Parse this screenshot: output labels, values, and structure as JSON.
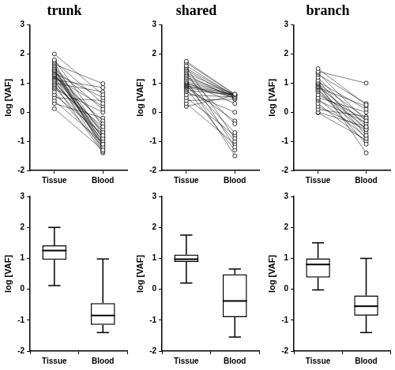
{
  "chart_data": [
    {
      "type": "paired",
      "title": "trunk",
      "y_label": "log [VAF]",
      "categories": [
        "Tissue",
        "Blood"
      ],
      "color": "#000000",
      "marker": "circle",
      "grid": false,
      "ylim": [
        -2,
        3
      ],
      "yticks": [
        -2,
        -1,
        0,
        1,
        2,
        3
      ],
      "series": [
        {
          "values": [
            2.0,
            0.6
          ]
        },
        {
          "values": [
            1.8,
            -0.5
          ]
        },
        {
          "values": [
            1.75,
            0.3
          ]
        },
        {
          "values": [
            1.7,
            -1.1
          ]
        },
        {
          "values": [
            1.65,
            0.98
          ]
        },
        {
          "values": [
            1.6,
            -0.8
          ]
        },
        {
          "values": [
            1.55,
            -1.3
          ]
        },
        {
          "values": [
            1.5,
            0.1
          ]
        },
        {
          "values": [
            1.45,
            -0.9
          ]
        },
        {
          "values": [
            1.42,
            -0.4
          ]
        },
        {
          "values": [
            1.4,
            -1.2
          ]
        },
        {
          "values": [
            1.35,
            0.5
          ]
        },
        {
          "values": [
            1.3,
            -0.7
          ]
        },
        {
          "values": [
            1.28,
            -1.0
          ]
        },
        {
          "values": [
            1.25,
            -0.3
          ]
        },
        {
          "values": [
            1.22,
            -1.35
          ]
        },
        {
          "values": [
            1.2,
            0.2
          ]
        },
        {
          "values": [
            1.15,
            -0.6
          ]
        },
        {
          "values": [
            1.1,
            -1.1
          ]
        },
        {
          "values": [
            1.05,
            -0.85
          ]
        },
        {
          "values": [
            1.0,
            0.7
          ]
        },
        {
          "values": [
            0.95,
            -1.4
          ]
        },
        {
          "values": [
            0.9,
            -0.5
          ]
        },
        {
          "values": [
            0.85,
            -0.95
          ]
        },
        {
          "values": [
            0.8,
            0.0
          ]
        },
        {
          "values": [
            0.7,
            -1.2
          ]
        },
        {
          "values": [
            0.6,
            -0.75
          ]
        },
        {
          "values": [
            0.5,
            0.4
          ]
        },
        {
          "values": [
            0.4,
            -1.05
          ]
        },
        {
          "values": [
            0.3,
            -0.2
          ]
        },
        {
          "values": [
            0.12,
            -1.3
          ]
        },
        {
          "values": [
            1.3,
            -0.9
          ]
        },
        {
          "values": [
            1.45,
            -1.15
          ]
        },
        {
          "values": [
            1.12,
            0.85
          ]
        },
        {
          "values": [
            0.98,
            -0.65
          ]
        }
      ]
    },
    {
      "type": "paired",
      "title": "shared",
      "y_label": "log [VAF]",
      "categories": [
        "Tissue",
        "Blood"
      ],
      "color": "#000000",
      "marker": "circle",
      "grid": false,
      "ylim": [
        -2,
        3
      ],
      "yticks": [
        -2,
        -1,
        0,
        1,
        2,
        3
      ],
      "series": [
        {
          "values": [
            1.75,
            0.62
          ]
        },
        {
          "values": [
            1.7,
            0.6
          ]
        },
        {
          "values": [
            1.6,
            0.55
          ]
        },
        {
          "values": [
            1.55,
            -0.9
          ]
        },
        {
          "values": [
            1.5,
            0.58
          ]
        },
        {
          "values": [
            1.45,
            0.5
          ]
        },
        {
          "values": [
            1.4,
            -1.2
          ]
        },
        {
          "values": [
            1.35,
            0.6
          ]
        },
        {
          "values": [
            1.3,
            0.45
          ]
        },
        {
          "values": [
            1.25,
            -0.4
          ]
        },
        {
          "values": [
            1.2,
            0.62
          ]
        },
        {
          "values": [
            1.15,
            0.55
          ]
        },
        {
          "values": [
            1.1,
            -1.5
          ]
        },
        {
          "values": [
            1.05,
            0.6
          ]
        },
        {
          "values": [
            1.02,
            0.3
          ]
        },
        {
          "values": [
            1.0,
            -0.7
          ]
        },
        {
          "values": [
            0.98,
            0.58
          ]
        },
        {
          "values": [
            0.95,
            -1.0
          ]
        },
        {
          "values": [
            0.92,
            0.5
          ]
        },
        {
          "values": [
            0.9,
            0.6
          ]
        },
        {
          "values": [
            0.88,
            -0.3
          ]
        },
        {
          "values": [
            0.85,
            0.55
          ]
        },
        {
          "values": [
            0.8,
            -1.3
          ]
        },
        {
          "values": [
            0.75,
            0.6
          ]
        },
        {
          "values": [
            0.7,
            0.0
          ]
        },
        {
          "values": [
            0.6,
            0.52
          ]
        },
        {
          "values": [
            0.5,
            -0.8
          ]
        },
        {
          "values": [
            0.4,
            0.45
          ]
        },
        {
          "values": [
            0.3,
            -1.1
          ]
        },
        {
          "values": [
            0.2,
            0.58
          ]
        }
      ]
    },
    {
      "type": "paired",
      "title": "branch",
      "y_label": "log [VAF]",
      "categories": [
        "Tissue",
        "Blood"
      ],
      "color": "#000000",
      "marker": "circle",
      "grid": false,
      "ylim": [
        -2,
        3
      ],
      "yticks": [
        -2,
        -1,
        0,
        1,
        2,
        3
      ],
      "series": [
        {
          "values": [
            1.5,
            0.25
          ]
        },
        {
          "values": [
            1.4,
            1.0
          ]
        },
        {
          "values": [
            1.35,
            -0.3
          ]
        },
        {
          "values": [
            1.3,
            0.3
          ]
        },
        {
          "values": [
            1.2,
            -0.5
          ]
        },
        {
          "values": [
            1.1,
            -0.8
          ]
        },
        {
          "values": [
            1.05,
            0.1
          ]
        },
        {
          "values": [
            1.0,
            -1.4
          ]
        },
        {
          "values": [
            0.98,
            -0.2
          ]
        },
        {
          "values": [
            0.95,
            -0.6
          ]
        },
        {
          "values": [
            0.9,
            -0.9
          ]
        },
        {
          "values": [
            0.88,
            -0.4
          ]
        },
        {
          "values": [
            0.85,
            0.2
          ]
        },
        {
          "values": [
            0.8,
            -1.1
          ]
        },
        {
          "values": [
            0.75,
            -0.55
          ]
        },
        {
          "values": [
            0.7,
            -0.7
          ]
        },
        {
          "values": [
            0.6,
            -0.25
          ]
        },
        {
          "values": [
            0.5,
            0.0
          ]
        },
        {
          "values": [
            0.45,
            -0.85
          ]
        },
        {
          "values": [
            0.4,
            -0.35
          ]
        },
        {
          "values": [
            0.3,
            -1.0
          ]
        },
        {
          "values": [
            0.2,
            -0.6
          ]
        },
        {
          "values": [
            0.1,
            -0.15
          ]
        },
        {
          "values": [
            0.0,
            -0.5
          ]
        },
        {
          "values": [
            -0.02,
            -0.95
          ]
        }
      ]
    },
    {
      "type": "box",
      "y_label": "log [VAF]",
      "categories": [
        "Tissue",
        "Blood"
      ],
      "color": "#000000",
      "grid": false,
      "ylim": [
        -2,
        3
      ],
      "yticks": [
        -2,
        -1,
        0,
        1,
        2,
        3
      ],
      "boxes": [
        {
          "min": 0.12,
          "q1": 0.95,
          "median": 1.25,
          "q3": 1.42,
          "max": 2.0
        },
        {
          "min": -1.4,
          "q1": -1.15,
          "median": -0.85,
          "q3": -0.45,
          "max": 0.98
        }
      ]
    },
    {
      "type": "box",
      "y_label": "log [VAF]",
      "categories": [
        "Tissue",
        "Blood"
      ],
      "color": "#000000",
      "grid": false,
      "ylim": [
        -2,
        3
      ],
      "yticks": [
        -2,
        -1,
        0,
        1,
        2,
        3
      ],
      "boxes": [
        {
          "min": 0.2,
          "q1": 0.88,
          "median": 0.97,
          "q3": 1.12,
          "max": 1.75
        },
        {
          "min": -1.55,
          "q1": -0.9,
          "median": -0.38,
          "q3": 0.48,
          "max": 0.65
        }
      ]
    },
    {
      "type": "box",
      "y_label": "log [VAF]",
      "categories": [
        "Tissue",
        "Blood"
      ],
      "color": "#000000",
      "grid": false,
      "ylim": [
        -2,
        3
      ],
      "yticks": [
        -2,
        -1,
        0,
        1,
        2,
        3
      ],
      "boxes": [
        {
          "min": -0.02,
          "q1": 0.38,
          "median": 0.8,
          "q3": 1.0,
          "max": 1.5
        },
        {
          "min": -1.4,
          "q1": -0.85,
          "median": -0.55,
          "q3": -0.2,
          "max": 1.0
        }
      ]
    }
  ]
}
